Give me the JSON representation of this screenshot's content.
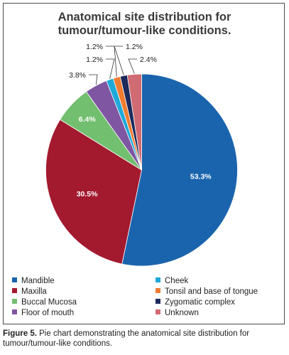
{
  "chart_data": {
    "type": "pie",
    "title": [
      "Anatomical site distribution for",
      "tumour/tumour-like conditions."
    ],
    "categories": [
      "Mandible",
      "Maxilla",
      "Buccal Mucosa",
      "Floor of mouth",
      "Cheek",
      "Tonsil and base of tongue",
      "Zygomatic complex",
      "Unknown"
    ],
    "values": [
      53.3,
      30.5,
      6.4,
      3.8,
      1.2,
      1.2,
      1.2,
      2.4
    ],
    "labels": [
      "53.3%",
      "30.5%",
      "6.4%",
      "3.8%",
      "1.2%",
      "1.2%",
      "1.2%",
      "2.4%"
    ],
    "colors": [
      "#1a64ad",
      "#a3192e",
      "#72bf6f",
      "#7f56a2",
      "#1ea9d9",
      "#f07c32",
      "#1c2a5c",
      "#d06b73"
    ],
    "legend_position": "bottom",
    "start_angle_deg": 0,
    "direction": "clockwise"
  },
  "caption": {
    "label": "Figure 5.",
    "text": " Pie chart demonstrating the anatomical site distribution for tumour/tumour-like conditions."
  }
}
